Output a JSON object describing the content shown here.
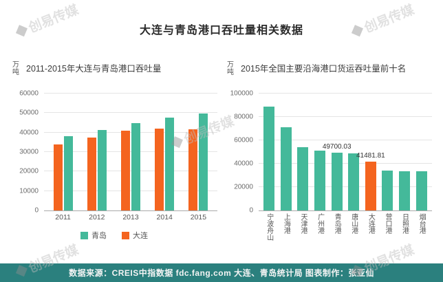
{
  "page": {
    "title": "大连与青岛港口吞吐量相关数据",
    "watermark": "创易传媒",
    "footer": "数据来源：CREIS中指数据 fdc.fang.com 大连、青岛统计局  图表制作：张亚仙"
  },
  "colors": {
    "qingdao": "#44b99a",
    "dalian": "#f4641f",
    "footer_bg": "#2b807e"
  },
  "chart_data": [
    {
      "type": "bar",
      "title": "2011-2015年大连与青岛港口吞吐量",
      "unit": "万吨",
      "categories": [
        "2011",
        "2012",
        "2013",
        "2014",
        "2015"
      ],
      "series": [
        {
          "name": "大连",
          "color_key": "dalian",
          "values": [
            33800,
            37300,
            40800,
            42000,
            41481.81
          ]
        },
        {
          "name": "青岛",
          "color_key": "qingdao",
          "values": [
            38000,
            41200,
            45000,
            47600,
            49700.03
          ]
        }
      ],
      "legend": [
        {
          "label": "青岛",
          "color_key": "qingdao"
        },
        {
          "label": "大连",
          "color_key": "dalian"
        }
      ],
      "ylim": [
        0,
        60000
      ],
      "yticks": [
        0,
        10000,
        20000,
        30000,
        40000,
        50000,
        60000
      ],
      "grid": true,
      "legend_position": "bottom"
    },
    {
      "type": "bar",
      "title": "2015年全国主要沿海港口货运吞吐量前十名",
      "unit": "万吨",
      "categories": [
        "宁波舟山",
        "上海港",
        "天津港",
        "广州港",
        "青岛港",
        "唐山港",
        "大连港",
        "营口港",
        "日照港",
        "烟台港"
      ],
      "values": [
        88900,
        71300,
        54000,
        51000,
        49700.03,
        49000,
        41481.81,
        33850,
        33700,
        33550
      ],
      "bar_colors": [
        "qingdao",
        "qingdao",
        "qingdao",
        "qingdao",
        "qingdao",
        "qingdao",
        "dalian",
        "qingdao",
        "qingdao",
        "qingdao"
      ],
      "data_labels": {
        "4": "49700.03",
        "6": "41481.81"
      },
      "ylim": [
        0,
        100000
      ],
      "yticks": [
        0,
        20000,
        40000,
        60000,
        80000,
        100000
      ],
      "grid": true,
      "vertical_x_labels": true
    }
  ]
}
